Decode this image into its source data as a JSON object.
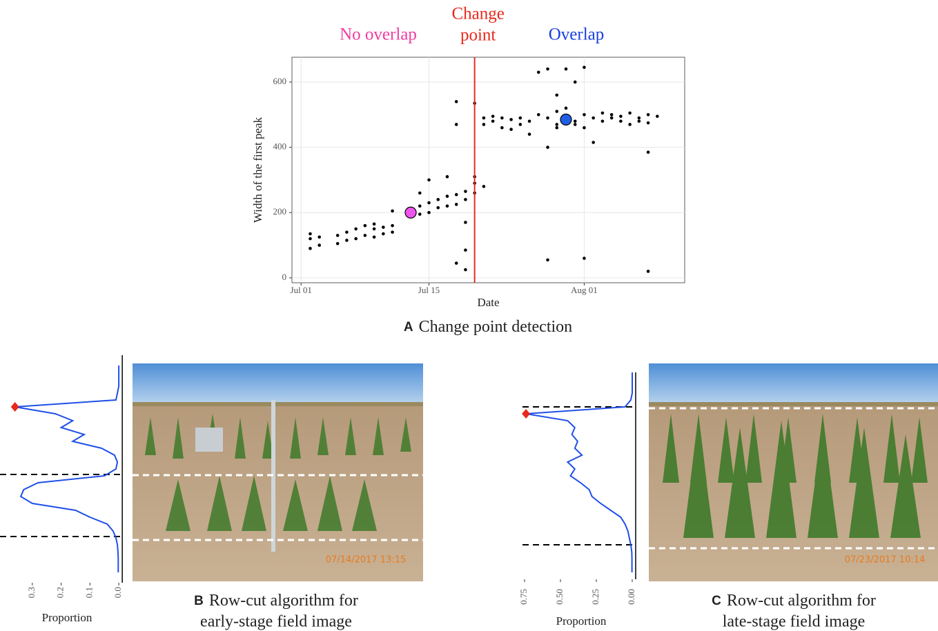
{
  "chart_data": [
    {
      "type": "scatter",
      "annotations": [
        {
          "text": "No overlap",
          "color": "#f03ca0"
        },
        {
          "lines": [
            "Change",
            "point"
          ],
          "color": "#e8291c"
        },
        {
          "text": "Overlap",
          "color": "#1a3fe0"
        }
      ],
      "xlabel": "Date",
      "ylabel": "Width of the first peak",
      "xlim": [
        "Jun 30",
        "Aug 12"
      ],
      "xticks": [
        "Jul 01",
        "Jul 15",
        "Aug 01"
      ],
      "ylim": [
        -15,
        676
      ],
      "yticks": [
        0,
        200,
        400,
        600
      ],
      "grid": true,
      "color": "#000000",
      "x": [
        "Jul 02",
        "Jul 02",
        "Jul 02",
        "Jul 03",
        "Jul 03",
        "Jul 05",
        "Jul 05",
        "Jul 06",
        "Jul 06",
        "Jul 07",
        "Jul 07",
        "Jul 08",
        "Jul 08",
        "Jul 09",
        "Jul 09",
        "Jul 09",
        "Jul 10",
        "Jul 10",
        "Jul 11",
        "Jul 11",
        "Jul 11",
        "Jul 14",
        "Jul 14",
        "Jul 14",
        "Jul 15",
        "Jul 15",
        "Jul 15",
        "Jul 16",
        "Jul 16",
        "Jul 17",
        "Jul 17",
        "Jul 17",
        "Jul 18",
        "Jul 18",
        "Jul 18",
        "Jul 18",
        "Jul 18",
        "Jul 19",
        "Jul 19",
        "Jul 19",
        "Jul 19",
        "Jul 19",
        "Jul 20",
        "Jul 20",
        "Jul 20",
        "Jul 20",
        "Jul 21",
        "Jul 21",
        "Jul 21",
        "Jul 22",
        "Jul 22",
        "Jul 23",
        "Jul 23",
        "Jul 24",
        "Jul 24",
        "Jul 25",
        "Jul 25",
        "Jul 26",
        "Jul 26",
        "Jul 27",
        "Jul 27",
        "Jul 28",
        "Jul 28",
        "Jul 28",
        "Jul 28",
        "Jul 29",
        "Jul 29",
        "Jul 29",
        "Jul 29",
        "Jul 30",
        "Jul 30",
        "Jul 30",
        "Jul 31",
        "Jul 31",
        "Jul 31",
        "Aug 01",
        "Aug 01",
        "Aug 01",
        "Aug 01",
        "Aug 02",
        "Aug 02",
        "Aug 03",
        "Aug 03",
        "Aug 04",
        "Aug 04",
        "Aug 05",
        "Aug 05",
        "Aug 06",
        "Aug 06",
        "Aug 07",
        "Aug 07",
        "Aug 08",
        "Aug 08",
        "Aug 08",
        "Aug 08",
        "Aug 09"
      ],
      "values": [
        90,
        120,
        135,
        100,
        125,
        105,
        130,
        115,
        140,
        120,
        150,
        130,
        160,
        125,
        150,
        165,
        135,
        155,
        140,
        160,
        205,
        195,
        220,
        260,
        200,
        230,
        300,
        215,
        240,
        220,
        250,
        310,
        225,
        255,
        540,
        470,
        45,
        240,
        265,
        170,
        85,
        25,
        260,
        290,
        310,
        535,
        280,
        470,
        490,
        480,
        495,
        490,
        460,
        485,
        455,
        490,
        470,
        480,
        440,
        500,
        630,
        490,
        640,
        55,
        400,
        510,
        560,
        470,
        460,
        490,
        520,
        640,
        470,
        600,
        480,
        460,
        500,
        645,
        60,
        490,
        415,
        505,
        480,
        500,
        490,
        495,
        480,
        505,
        470,
        490,
        480,
        500,
        475,
        385,
        20,
        495
      ],
      "change_point": {
        "x": "Jul 20",
        "color": "#e8291c"
      },
      "highlights": [
        {
          "x": "Jul 13",
          "y": 200,
          "color": "#ee55ee"
        },
        {
          "x": "Jul 30",
          "y": 485,
          "color": "#1f5fe6"
        }
      ],
      "caption": {
        "letter": "A",
        "lines": [
          "Change point detection"
        ]
      }
    },
    {
      "type": "profile",
      "xlabel": "Proportion",
      "color": "#1f4fe8",
      "xlim": [
        0.4,
        -0.014
      ],
      "xticks": [
        0.3,
        0.2,
        0.1,
        {
          "value": 0,
          "label": "0.0"
        }
      ],
      "values": [
        0,
        0,
        0,
        0,
        0.005,
        0.01,
        0.36,
        0.22,
        0.16,
        0.2,
        0.12,
        0.16,
        0.06,
        0.015,
        0.005,
        0.01,
        0.05,
        0.28,
        0.33,
        0.34,
        0.3,
        0.15,
        0.1,
        0.04,
        0.02,
        0.01,
        0.005,
        0.003,
        0.002,
        0.002,
        0.002
      ],
      "photo_timestamp": "07/14/2017 13:15",
      "caption": {
        "letter": "B",
        "lines": [
          "Row-cut algorithm for",
          "early-stage field image"
        ]
      }
    },
    {
      "type": "profile",
      "xlabel": "Proportion",
      "color": "#1f4fe8",
      "xlim": [
        0.774,
        -0.029
      ],
      "xticks": [
        0.75,
        {
          "value": 0.5,
          "label": "0.50"
        },
        0.25,
        {
          "value": 0,
          "label": "0.00"
        }
      ],
      "values": [
        0,
        0,
        0,
        0,
        0.01,
        0.05,
        0.74,
        0.45,
        0.4,
        0.42,
        0.38,
        0.4,
        0.35,
        0.45,
        0.4,
        0.43,
        0.36,
        0.3,
        0.28,
        0.22,
        0.15,
        0.08,
        0.05,
        0.03,
        0.02,
        0.01,
        0.003,
        0.002,
        0.002,
        0.002
      ],
      "photo_timestamp": "07/23/2017 10:14",
      "caption": {
        "letter": "C",
        "lines": [
          "Row-cut algorithm for",
          "late-stage field image"
        ]
      }
    }
  ]
}
